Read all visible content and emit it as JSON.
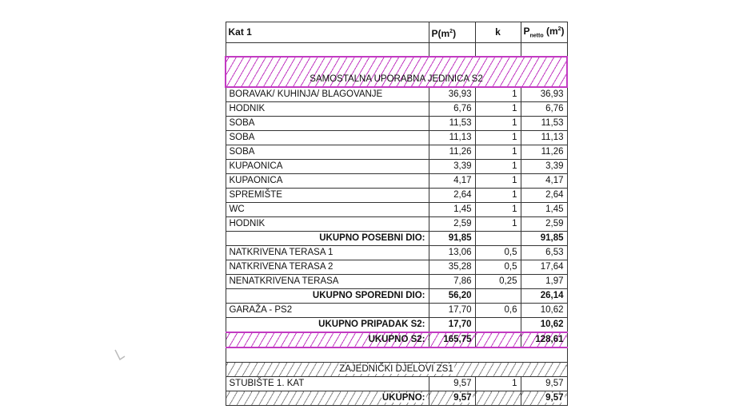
{
  "header": {
    "floor": "Kat 1",
    "col_p": "P(m",
    "col_k": "k",
    "col_pnetto": "P",
    "col_pnetto_sub": "netto",
    "col_pnetto_unit": " (m",
    "sup": "2",
    "close": ")"
  },
  "unit_s2": {
    "title": "SAMOSTALNA UPORABNA JEDINICA S2",
    "rooms": [
      {
        "name": "BORAVAK/ KUHINJA/ BLAGOVANJE",
        "p": "36,93",
        "k": "1",
        "pn": "36,93"
      },
      {
        "name": "HODNIK",
        "p": "6,76",
        "k": "1",
        "pn": "6,76"
      },
      {
        "name": "SOBA",
        "p": "11,53",
        "k": "1",
        "pn": "11,53"
      },
      {
        "name": "SOBA",
        "p": "11,13",
        "k": "1",
        "pn": "11,13"
      },
      {
        "name": "SOBA",
        "p": "11,26",
        "k": "1",
        "pn": "11,26"
      },
      {
        "name": "KUPAONICA",
        "p": "3,39",
        "k": "1",
        "pn": "3,39"
      },
      {
        "name": "KUPAONICA",
        "p": "4,17",
        "k": "1",
        "pn": "4,17"
      },
      {
        "name": "SPREMIŠTE",
        "p": "2,64",
        "k": "1",
        "pn": "2,64"
      },
      {
        "name": "WC",
        "p": "1,45",
        "k": "1",
        "pn": "1,45"
      },
      {
        "name": "HODNIK",
        "p": "2,59",
        "k": "1",
        "pn": "2,59"
      }
    ],
    "total_main": {
      "label": "UKUPNO POSEBNI DIO:",
      "p": "91,85",
      "pn": "91,85"
    },
    "secondary": [
      {
        "name": "NATKRIVENA TERASA 1",
        "p": "13,06",
        "k": "0,5",
        "pn": "6,53"
      },
      {
        "name": "NATKRIVENA TERASA 2",
        "p": "35,28",
        "k": "0,5",
        "pn": "17,64"
      },
      {
        "name": "NENATKRIVENA TERASA",
        "p": "7,86",
        "k": "0,25",
        "pn": "1,97"
      }
    ],
    "total_secondary": {
      "label": "UKUPNO SPOREDNI DIO:",
      "p": "56,20",
      "pn": "26,14"
    },
    "appurtenance": [
      {
        "name": "GARAŽA - PS2",
        "p": "17,70",
        "k": "0,6",
        "pn": "10,62"
      }
    ],
    "total_appurtenance": {
      "label": "UKUPNO PRIPADAK S2:",
      "p": "17,70",
      "pn": "10,62"
    },
    "total": {
      "label": "UKUPNO S2:",
      "p": "165,75",
      "pn": "128,61"
    }
  },
  "common_zs1": {
    "title": "ZAJEDNIČKI DJELOVI ZS1",
    "rooms": [
      {
        "name": "STUBIŠTE 1. KAT",
        "p": "9,57",
        "k": "1",
        "pn": "9,57"
      }
    ],
    "total": {
      "label": "UKUPNO:",
      "p": "9,57",
      "pn": "9,57"
    }
  },
  "colors": {
    "hatch_s2": "#c23bc2",
    "hatch_zs1": "#888888"
  }
}
